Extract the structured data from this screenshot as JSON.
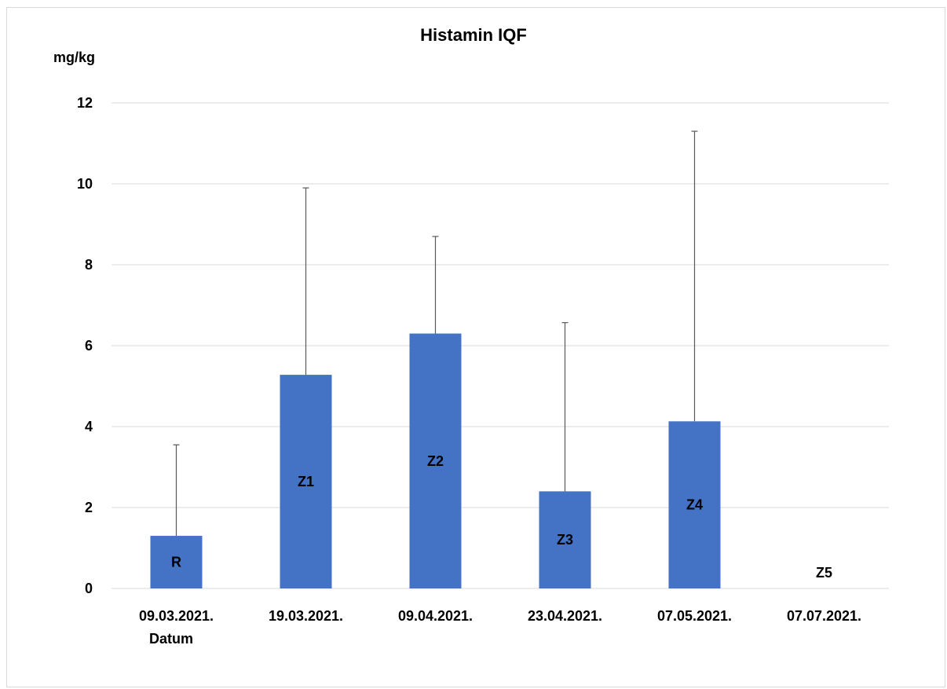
{
  "chart_data": {
    "type": "bar",
    "title": "Histamin IQF",
    "ylabel": "mg/kg",
    "xlabel": "Datum",
    "ylim": [
      0,
      12
    ],
    "yticks": [
      0,
      2,
      4,
      6,
      8,
      10,
      12
    ],
    "grid": true,
    "bar_color": "#4472c4",
    "gridline_color": "#d9d9d9",
    "errorbar_color": "#595959",
    "categories": [
      "09.03.2021.",
      "19.03.2021.",
      "09.04.2021.",
      "23.04.2021.",
      "07.05.2021.",
      "07.07.2021."
    ],
    "values": [
      1.3,
      5.28,
      6.3,
      2.4,
      4.13,
      0
    ],
    "error_upper": [
      3.55,
      9.9,
      8.7,
      6.57,
      11.3,
      null
    ],
    "data_labels": [
      "R",
      "Z1",
      "Z2",
      "Z3",
      "Z4",
      "Z5"
    ]
  }
}
